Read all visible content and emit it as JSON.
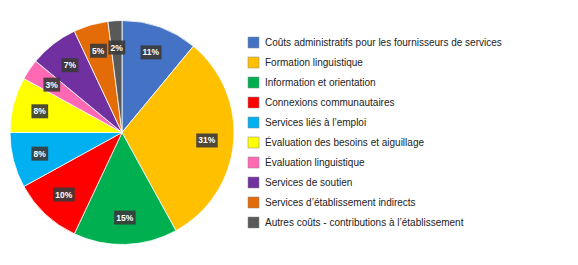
{
  "chart_data": {
    "type": "pie",
    "categories": [
      "Coûts administratifs pour les fournisseurs de services",
      "Formation linguistique",
      "Information et orientation",
      "Connexions communautaires",
      "Services liés à l’emploi",
      "Évaluation des besoins et aiguillage",
      "Évaluation linguistique",
      "Services de soutien",
      "Services d’établissement indirects",
      "Autres coûts - contributions à l’établissement"
    ],
    "values": [
      11,
      31,
      15,
      10,
      8,
      8,
      3,
      7,
      5,
      2
    ],
    "value_labels": [
      "11%",
      "31%",
      "15%",
      "10%",
      "8%",
      "8%",
      "3%",
      "7%",
      "5%",
      "2%"
    ],
    "colors": [
      "#4472C4",
      "#FFC000",
      "#00B050",
      "#FF0000",
      "#00B0F0",
      "#FFFF00",
      "#FF69B4",
      "#7030A0",
      "#E36C09",
      "#595959"
    ],
    "data_labels": true,
    "legend": "right"
  }
}
